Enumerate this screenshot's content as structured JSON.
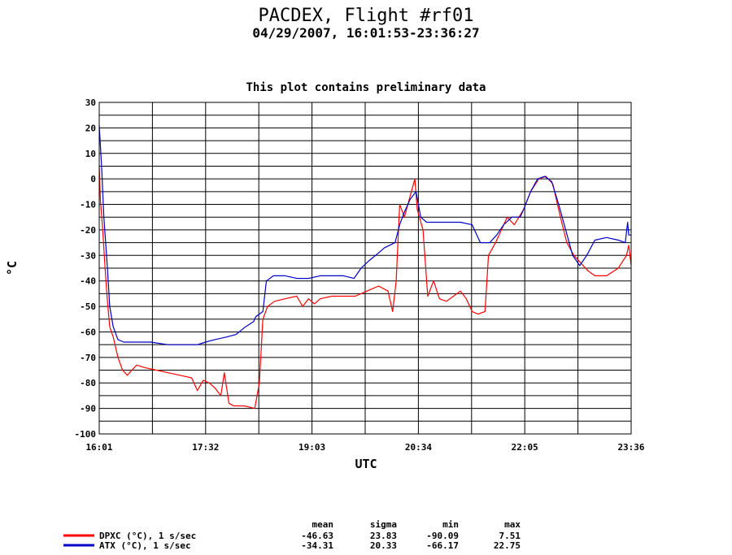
{
  "chart_data": {
    "type": "line",
    "title": "PACDEX, Flight #rf01",
    "subtitle": "04/29/2007, 16:01:53-23:36:27",
    "note": "This plot contains preliminary data",
    "xlabel": "UTC",
    "ylabel": "°C",
    "xlim": [
      "16:01",
      "23:36"
    ],
    "ylim": [
      -100,
      30
    ],
    "x_ticks": [
      "16:01",
      "17:32",
      "19:03",
      "20:34",
      "22:05",
      "23:36"
    ],
    "y_ticks": [
      30,
      20,
      10,
      0,
      -10,
      -20,
      -30,
      -40,
      -50,
      -60,
      -70,
      -80,
      -90,
      -100
    ],
    "grid": true,
    "stats_headers": [
      "mean",
      "sigma",
      "min",
      "max"
    ],
    "series": [
      {
        "name": "DPXC (°C), 1 s/sec",
        "color": "#ff0000",
        "stats": [
          "-46.63",
          "23.83",
          "-90.09",
          "7.51"
        ],
        "points": [
          [
            "16:01",
            5
          ],
          [
            "16:02",
            -8
          ],
          [
            "16:04",
            -20
          ],
          [
            "16:06",
            -35
          ],
          [
            "16:08",
            -48
          ],
          [
            "16:10",
            -58
          ],
          [
            "16:13",
            -62
          ],
          [
            "16:17",
            -70
          ],
          [
            "16:21",
            -75
          ],
          [
            "16:25",
            -77
          ],
          [
            "16:29",
            -75
          ],
          [
            "16:33",
            -73
          ],
          [
            "16:40",
            -74
          ],
          [
            "16:50",
            -75
          ],
          [
            "17:00",
            -76
          ],
          [
            "17:10",
            -77
          ],
          [
            "17:20",
            -78
          ],
          [
            "17:25",
            -83
          ],
          [
            "17:30",
            -79
          ],
          [
            "17:35",
            -80
          ],
          [
            "17:40",
            -82
          ],
          [
            "17:45",
            -85
          ],
          [
            "17:48",
            -76
          ],
          [
            "17:52",
            -88
          ],
          [
            "17:56",
            -89
          ],
          [
            "18:05",
            -89
          ],
          [
            "18:14",
            -90
          ],
          [
            "18:18",
            -80
          ],
          [
            "18:21",
            -55
          ],
          [
            "18:25",
            -50
          ],
          [
            "18:31",
            -48
          ],
          [
            "18:40",
            -47
          ],
          [
            "18:50",
            -46
          ],
          [
            "18:55",
            -50
          ],
          [
            "19:00",
            -47
          ],
          [
            "19:05",
            -49
          ],
          [
            "19:10",
            -47
          ],
          [
            "19:20",
            -46
          ],
          [
            "19:30",
            -46
          ],
          [
            "19:40",
            -46
          ],
          [
            "19:50",
            -44
          ],
          [
            "20:00",
            -42
          ],
          [
            "20:08",
            -44
          ],
          [
            "20:12",
            -52
          ],
          [
            "20:15",
            -40
          ],
          [
            "20:18",
            -10
          ],
          [
            "20:22",
            -15
          ],
          [
            "20:28",
            -5
          ],
          [
            "20:31",
            0
          ],
          [
            "20:33",
            -12
          ],
          [
            "20:38",
            -20
          ],
          [
            "20:42",
            -46
          ],
          [
            "20:47",
            -40
          ],
          [
            "20:52",
            -47
          ],
          [
            "20:58",
            -48
          ],
          [
            "21:04",
            -46
          ],
          [
            "21:10",
            -44
          ],
          [
            "21:15",
            -47
          ],
          [
            "21:20",
            -52
          ],
          [
            "21:25",
            -53
          ],
          [
            "21:31",
            -52
          ],
          [
            "21:34",
            -30
          ],
          [
            "21:40",
            -25
          ],
          [
            "21:45",
            -20
          ],
          [
            "21:50",
            -15
          ],
          [
            "21:56",
            -18
          ],
          [
            "22:00",
            -15
          ],
          [
            "22:04",
            -12
          ],
          [
            "22:10",
            -5
          ],
          [
            "22:17",
            0
          ],
          [
            "22:23",
            1
          ],
          [
            "22:29",
            -2
          ],
          [
            "22:35",
            -14
          ],
          [
            "22:41",
            -25
          ],
          [
            "22:47",
            -30
          ],
          [
            "22:53",
            -33
          ],
          [
            "22:59",
            -36
          ],
          [
            "23:05",
            -38
          ],
          [
            "23:15",
            -38
          ],
          [
            "23:25",
            -35
          ],
          [
            "23:32",
            -30
          ],
          [
            "23:34",
            -26
          ],
          [
            "23:36",
            -34
          ]
        ]
      },
      {
        "name": "ATX (°C), 1 s/sec",
        "color": "#0000c8",
        "stats": [
          "-34.31",
          "20.33",
          "-66.17",
          "22.75"
        ],
        "points": [
          [
            "16:01",
            21
          ],
          [
            "16:03",
            5
          ],
          [
            "16:05",
            -15
          ],
          [
            "16:08",
            -35
          ],
          [
            "16:10",
            -50
          ],
          [
            "16:13",
            -58
          ],
          [
            "16:17",
            -63
          ],
          [
            "16:22",
            -64
          ],
          [
            "16:30",
            -64
          ],
          [
            "16:45",
            -64
          ],
          [
            "17:00",
            -65
          ],
          [
            "17:15",
            -65
          ],
          [
            "17:25",
            -65
          ],
          [
            "17:32",
            -64
          ],
          [
            "17:40",
            -63
          ],
          [
            "17:50",
            -62
          ],
          [
            "17:58",
            -61
          ],
          [
            "18:06",
            -58
          ],
          [
            "18:13",
            -56
          ],
          [
            "18:15",
            -54
          ],
          [
            "18:21",
            -52
          ],
          [
            "18:24",
            -40
          ],
          [
            "18:30",
            -38
          ],
          [
            "18:40",
            -38
          ],
          [
            "18:50",
            -39
          ],
          [
            "19:00",
            -39
          ],
          [
            "19:10",
            -38
          ],
          [
            "19:20",
            -38
          ],
          [
            "19:30",
            -38
          ],
          [
            "19:39",
            -39
          ],
          [
            "19:45",
            -35
          ],
          [
            "19:52",
            -32
          ],
          [
            "20:00",
            -29
          ],
          [
            "20:05",
            -27
          ],
          [
            "20:14",
            -25
          ],
          [
            "20:18",
            -18
          ],
          [
            "20:22",
            -13
          ],
          [
            "20:27",
            -8
          ],
          [
            "20:32",
            -5
          ],
          [
            "20:36",
            -15
          ],
          [
            "20:41",
            -17
          ],
          [
            "20:50",
            -17
          ],
          [
            "21:00",
            -17
          ],
          [
            "21:10",
            -17
          ],
          [
            "21:20",
            -18
          ],
          [
            "21:27",
            -25
          ],
          [
            "21:35",
            -25
          ],
          [
            "21:41",
            -22
          ],
          [
            "21:47",
            -18
          ],
          [
            "21:54",
            -15
          ],
          [
            "22:01",
            -15
          ],
          [
            "22:04",
            -12
          ],
          [
            "22:10",
            -5
          ],
          [
            "22:16",
            0
          ],
          [
            "22:22",
            1
          ],
          [
            "22:28",
            -1
          ],
          [
            "22:34",
            -10
          ],
          [
            "22:40",
            -20
          ],
          [
            "22:46",
            -30
          ],
          [
            "22:52",
            -34
          ],
          [
            "22:58",
            -30
          ],
          [
            "23:05",
            -24
          ],
          [
            "23:15",
            -23
          ],
          [
            "23:25",
            -24
          ],
          [
            "23:31",
            -25
          ],
          [
            "23:33",
            -17
          ],
          [
            "23:34",
            -22
          ],
          [
            "23:36",
            -22
          ]
        ]
      }
    ]
  }
}
